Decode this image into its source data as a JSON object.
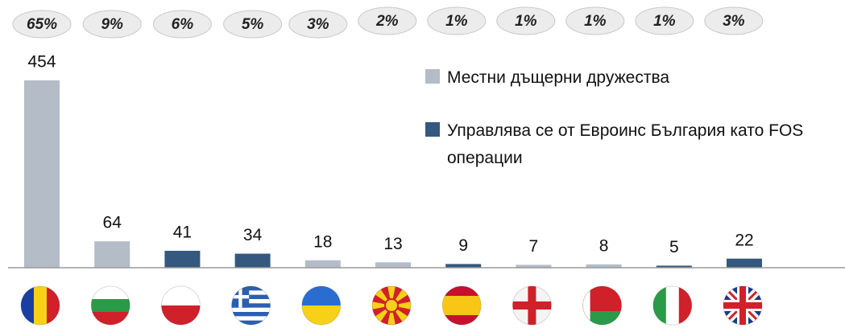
{
  "chart_data": {
    "type": "bar",
    "categories": [
      null,
      null,
      null,
      null,
      null,
      null,
      null,
      null,
      null,
      null,
      null
    ],
    "series": [
      {
        "name": "Местни дъщерни дружества",
        "color": "#b4bcc8",
        "values": [
          454,
          64,
          null,
          null,
          18,
          13,
          null,
          7,
          8,
          null,
          null
        ]
      },
      {
        "name": "Управлява се от Евроинс България като FOS операции",
        "color": "#34587f",
        "values": [
          null,
          null,
          41,
          34,
          null,
          null,
          9,
          null,
          null,
          5,
          22
        ]
      }
    ],
    "shares": {
      "values": [
        65,
        9,
        6,
        5,
        3,
        2,
        1,
        1,
        1,
        1,
        3
      ],
      "value_labels": [
        "65%",
        "9%",
        "6%",
        "5%",
        "3%",
        "2%",
        "1%",
        "1%",
        "1%",
        "1%",
        "3%"
      ]
    },
    "ylim": [
      0,
      454
    ]
  }
}
